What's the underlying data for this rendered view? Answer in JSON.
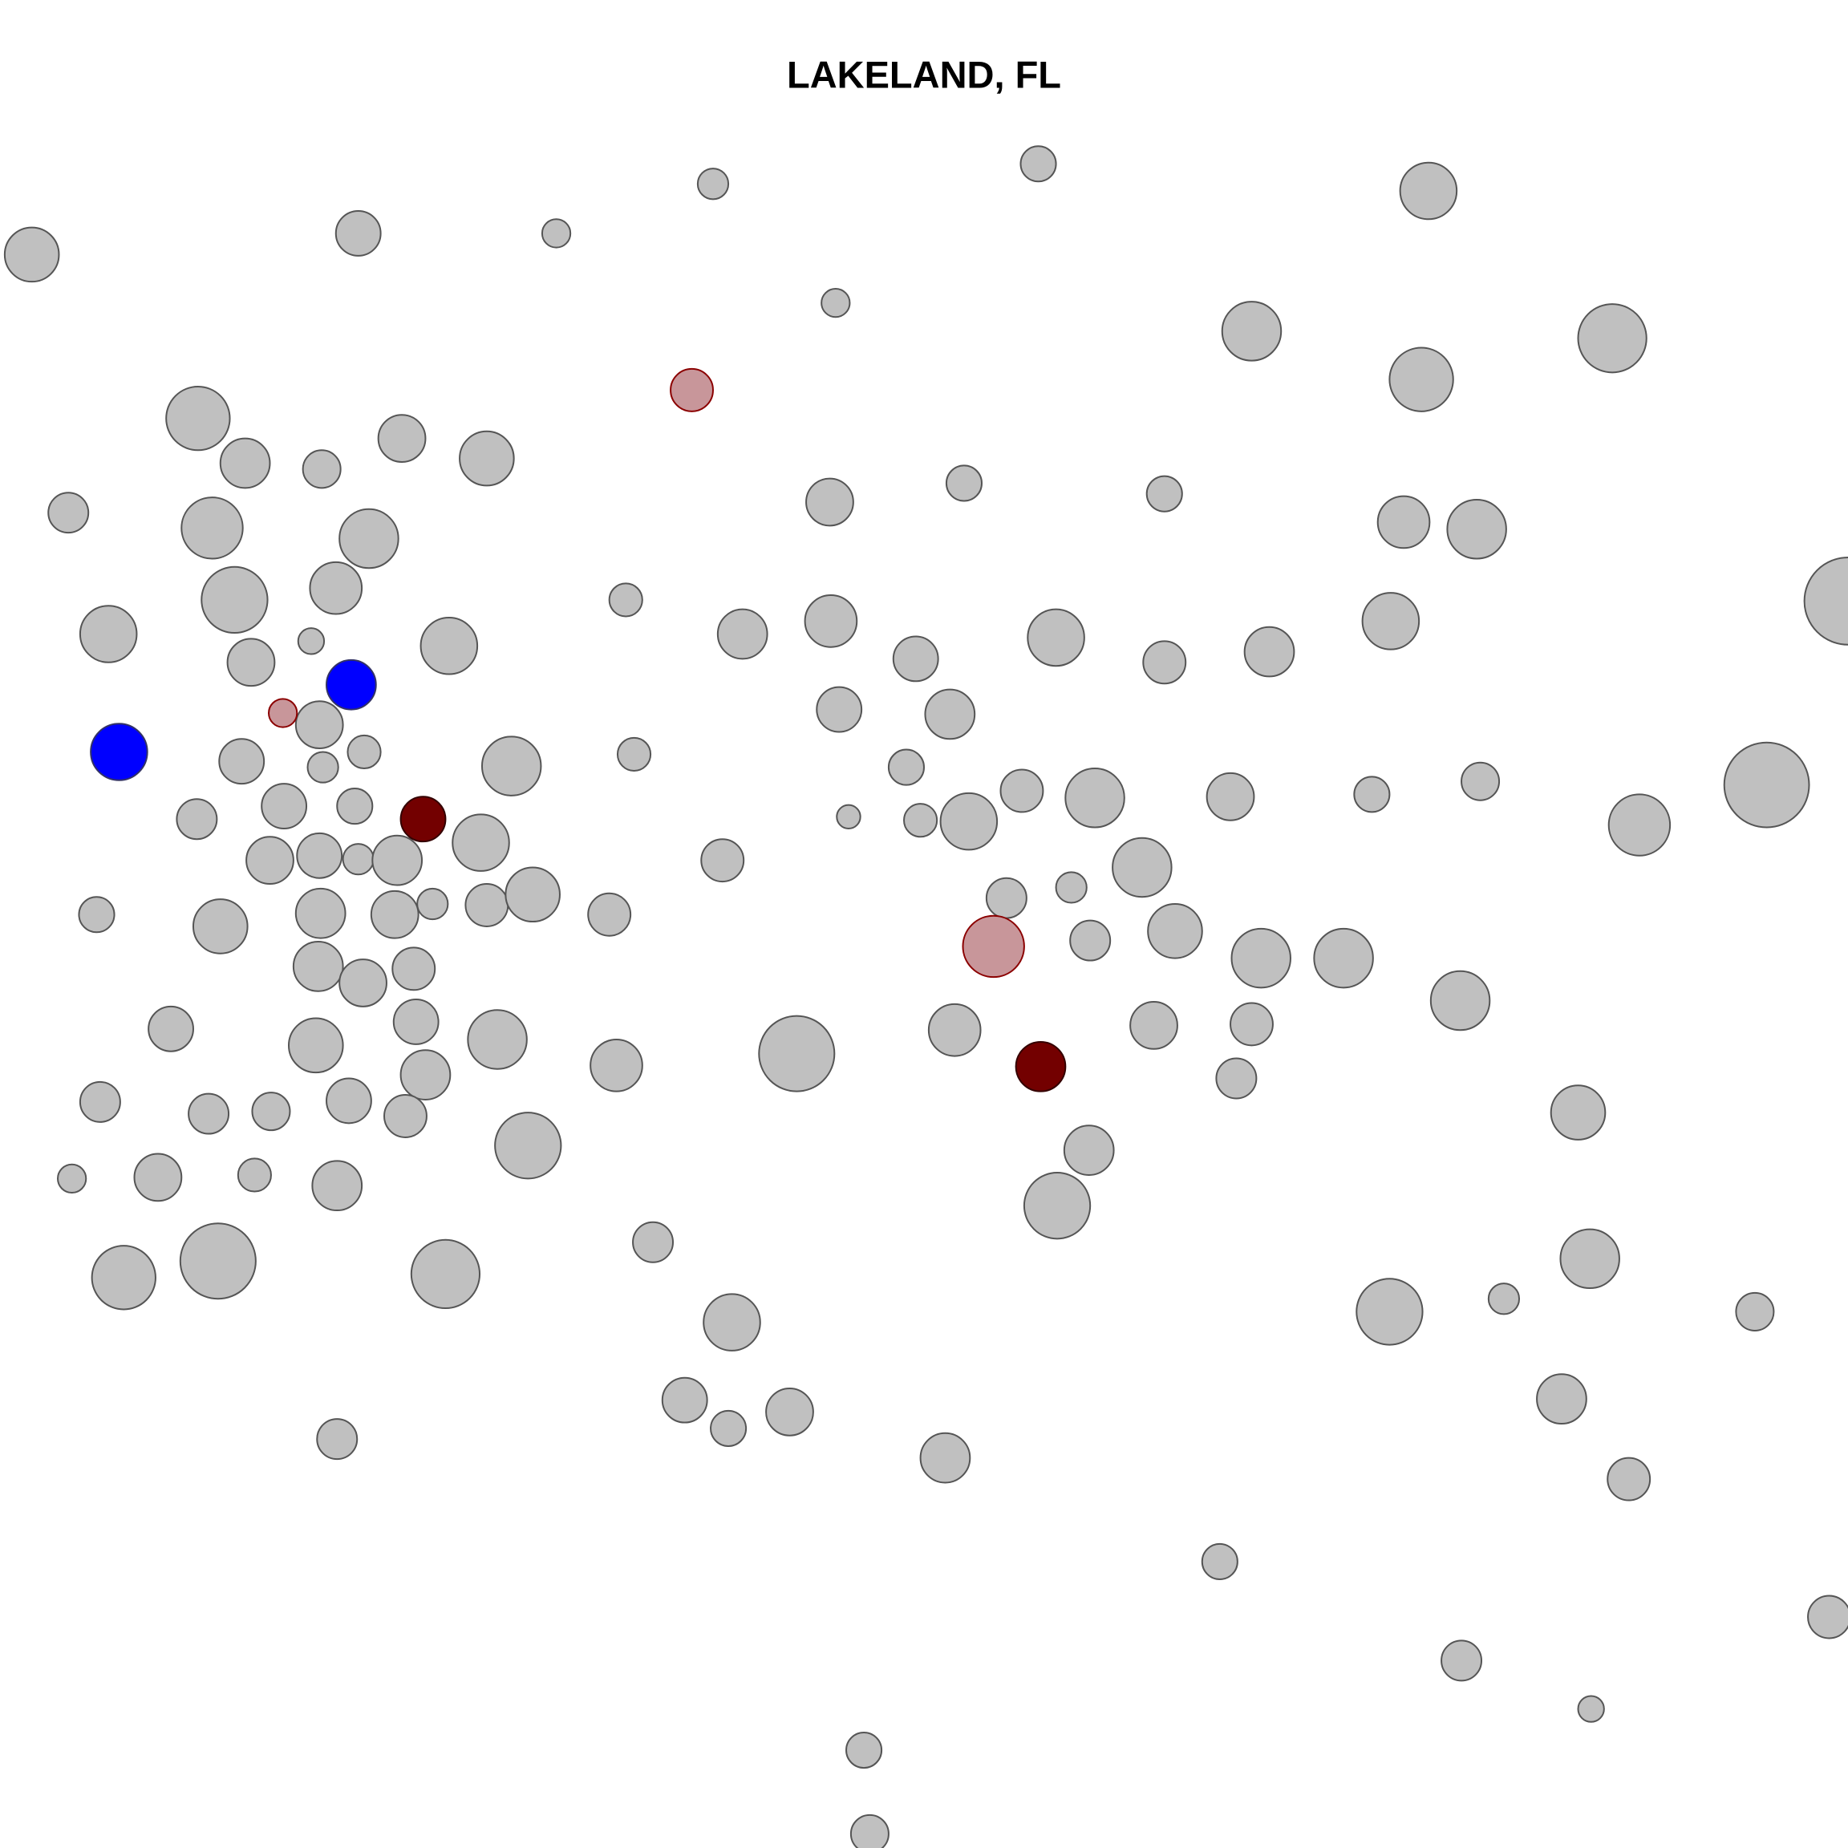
{
  "chart_data": {
    "type": "bubble",
    "title": "LAKELAND, FL",
    "xlim": [
      0,
      1568
    ],
    "ylim": [
      1568,
      0
    ],
    "series": [
      {
        "color": "#c0c0c0",
        "edgecolor": "#555555",
        "x": [
          27,
          304,
          472,
          605,
          881,
          1212,
          709,
          1062,
          1368,
          1206,
          168,
          208,
          273,
          341,
          413,
          58,
          180,
          313,
          704,
          818,
          988,
          1191,
          1253,
          92,
          199,
          285,
          531,
          264,
          213,
          381,
          630,
          705,
          777,
          896,
          988,
          1077,
          1180,
          1568,
          271,
          309,
          274,
          205,
          434,
          538,
          712,
          806,
          769,
          720,
          781,
          822,
          867,
          929,
          1044,
          1164,
          1256,
          1499,
          1391,
          167,
          241,
          301,
          229,
          271,
          304,
          337,
          408,
          613,
          82,
          187,
          272,
          335,
          367,
          413,
          452,
          517,
          854,
          909,
          969,
          925,
          997,
          1070,
          1140,
          1239,
          270,
          308,
          351,
          145,
          268,
          353,
          422,
          361,
          523,
          676,
          810,
          979,
          1062,
          1049,
          85,
          177,
          230,
          296,
          344,
          448,
          924,
          897,
          1339,
          61,
          134,
          216,
          286,
          105,
          185,
          378,
          554,
          1349,
          1179,
          1276,
          1489,
          621,
          581,
          618,
          670,
          286,
          802,
          1325,
          1382,
          1035,
          1552,
          1240,
          1350,
          733,
          738
        ],
        "y": [
          216,
          198,
          198,
          156,
          139,
          162,
          257,
          281,
          287,
          322,
          355,
          393,
          398,
          372,
          389,
          435,
          448,
          457,
          426,
          410,
          419,
          443,
          449,
          538,
          509,
          499,
          509,
          544,
          562,
          548,
          538,
          527,
          559,
          541,
          562,
          553,
          527,
          510,
          615,
          638,
          651,
          646,
          650,
          640,
          602,
          606,
          651,
          693,
          696,
          697,
          671,
          677,
          676,
          674,
          663,
          666,
          700,
          695,
          684,
          684,
          730,
          726,
          729,
          730,
          715,
          730,
          776,
          786,
          775,
          776,
          767,
          768,
          759,
          776,
          762,
          753,
          736,
          798,
          790,
          813,
          813,
          849,
          820,
          834,
          822,
          873,
          887,
          867,
          882,
          912,
          904,
          894,
          874,
          870,
          869,
          915,
          935,
          945,
          943,
          934,
          947,
          972,
          976,
          1023,
          944,
          1000,
          999,
          997,
          1006,
          1084,
          1070,
          1081,
          1054,
          1068,
          1113,
          1102,
          1113,
          1122,
          1188,
          1212,
          1198,
          1221,
          1237,
          1187,
          1255,
          1325,
          1372,
          1409,
          1450,
          1485,
          1556
        ],
        "size": [
          23,
          19,
          12,
          13,
          15,
          24,
          12,
          25,
          29,
          27,
          27,
          21,
          16,
          20,
          23,
          17,
          26,
          25,
          20,
          15,
          15,
          22,
          25,
          24,
          28,
          22,
          14,
          11,
          20,
          24,
          21,
          22,
          19,
          24,
          18,
          21,
          24,
          37,
          20,
          14,
          13,
          19,
          25,
          14,
          19,
          21,
          15,
          10,
          14,
          24,
          18,
          25,
          20,
          15,
          16,
          36,
          26,
          17,
          19,
          15,
          20,
          19,
          13,
          21,
          24,
          18,
          15,
          23,
          21,
          20,
          13,
          18,
          23,
          18,
          17,
          13,
          25,
          17,
          23,
          25,
          25,
          25,
          21,
          20,
          18,
          19,
          23,
          19,
          25,
          21,
          22,
          32,
          22,
          20,
          18,
          17,
          17,
          17,
          16,
          19,
          18,
          28,
          21,
          28,
          23,
          12,
          20,
          14,
          21,
          27,
          32,
          29,
          17,
          25,
          28,
          13,
          16,
          24,
          19,
          15,
          20,
          17,
          21,
          21,
          18,
          15,
          18,
          17,
          11,
          15,
          16
        ]
      },
      {
        "color": "#0000ff",
        "edgecolor": "#333366",
        "x": [
          101,
          298
        ],
        "y": [
          638,
          581
        ],
        "size": [
          24,
          21
        ]
      },
      {
        "color": "#730000",
        "edgecolor": "#330000",
        "x": [
          359,
          883
        ],
        "y": [
          695,
          905
        ],
        "size": [
          19,
          21
        ]
      },
      {
        "color": "#c8969a",
        "edgecolor": "#8b0000",
        "x": [
          587,
          240,
          843
        ],
        "y": [
          331,
          605,
          803
        ],
        "size": [
          18,
          12,
          26
        ]
      }
    ]
  }
}
